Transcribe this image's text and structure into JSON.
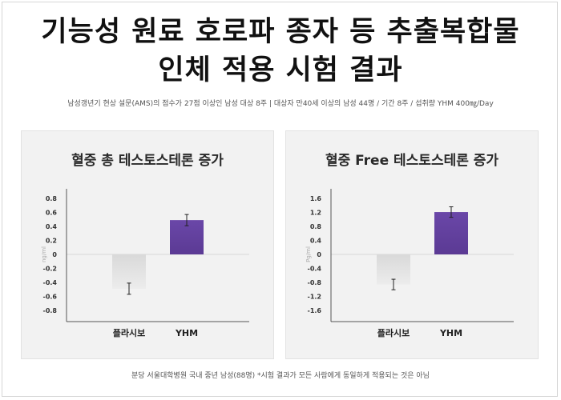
{
  "header": {
    "title_line1": "기능성 원료 호로파 종자 등 추출복합물",
    "title_line2": "인체 적용 시험 결과",
    "subtitle": "남성갱년기 현상 설문(AMS)의 점수가 27점 이상인 남성 대상 8주 | 대상자 만40세 이상의 남성 44명 / 기간 8주 / 섭취량 YHM 400㎎/Day"
  },
  "footer": {
    "note": "분당 서울대학병원 국내 중년 남성(88명) *시험 결과가 모든 사람에게 동일하게 적용되는 것은 아님"
  },
  "colors": {
    "yhm": "#5b3a94",
    "placebo": "#e2e2e2"
  },
  "chart_data": [
    {
      "type": "bar",
      "title": "혈중 총 테스토스테론 증가",
      "ylabel": "ng/ml",
      "categories": [
        "플라시보",
        "YHM"
      ],
      "values": [
        -0.49,
        0.49
      ],
      "error": [
        0.08,
        0.08
      ],
      "ylim": [
        -0.8,
        0.8
      ],
      "yticks": [
        "0.8",
        "0.6",
        "0.4",
        "0.2",
        "0",
        "-0.2",
        "-0.4",
        "-0.6",
        "-0.8"
      ],
      "ytick_values": [
        0.8,
        0.6,
        0.4,
        0.2,
        0,
        -0.2,
        -0.4,
        -0.6,
        -0.8
      ],
      "grid": false
    },
    {
      "type": "bar",
      "title": "혈중 Free 테스토스테론 증가",
      "ylabel": "Pg/ml",
      "categories": [
        "플라시보",
        "YHM"
      ],
      "values": [
        -0.86,
        1.21
      ],
      "error": [
        0.15,
        0.15
      ],
      "ylim": [
        -1.6,
        1.6
      ],
      "yticks": [
        "1.6",
        "1.2",
        "0.8",
        "0.4",
        "0",
        "-0.4",
        "-0.8",
        "-1.2",
        "-1.6"
      ],
      "ytick_values": [
        1.6,
        1.2,
        0.8,
        0.4,
        0,
        -0.4,
        -0.8,
        -1.2,
        -1.6
      ],
      "grid": false
    }
  ]
}
